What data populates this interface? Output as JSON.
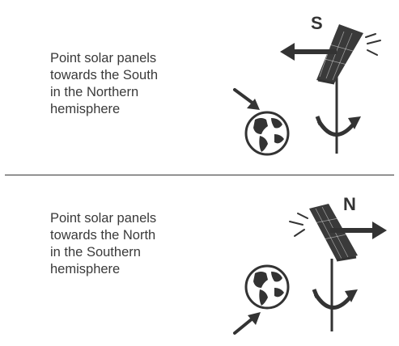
{
  "colors": {
    "ink": "#333333",
    "text": "#3a3a3a",
    "background": "#ffffff"
  },
  "sections": [
    {
      "caption_lines": [
        "Point solar panels",
        "towards the South",
        "in the Northern",
        "hemisphere"
      ],
      "direction_letter": "S",
      "icons": [
        "solar-panel-icon",
        "sun-rays-icon",
        "direction-arrow-icon",
        "rotation-arrow-icon",
        "globe-icon",
        "pointer-arrow-icon"
      ]
    },
    {
      "caption_lines": [
        "Point solar panels",
        "towards the North",
        "in the Southern",
        "hemisphere"
      ],
      "direction_letter": "N",
      "icons": [
        "solar-panel-icon",
        "sun-rays-icon",
        "direction-arrow-icon",
        "rotation-arrow-icon",
        "globe-icon",
        "pointer-arrow-icon"
      ]
    }
  ]
}
